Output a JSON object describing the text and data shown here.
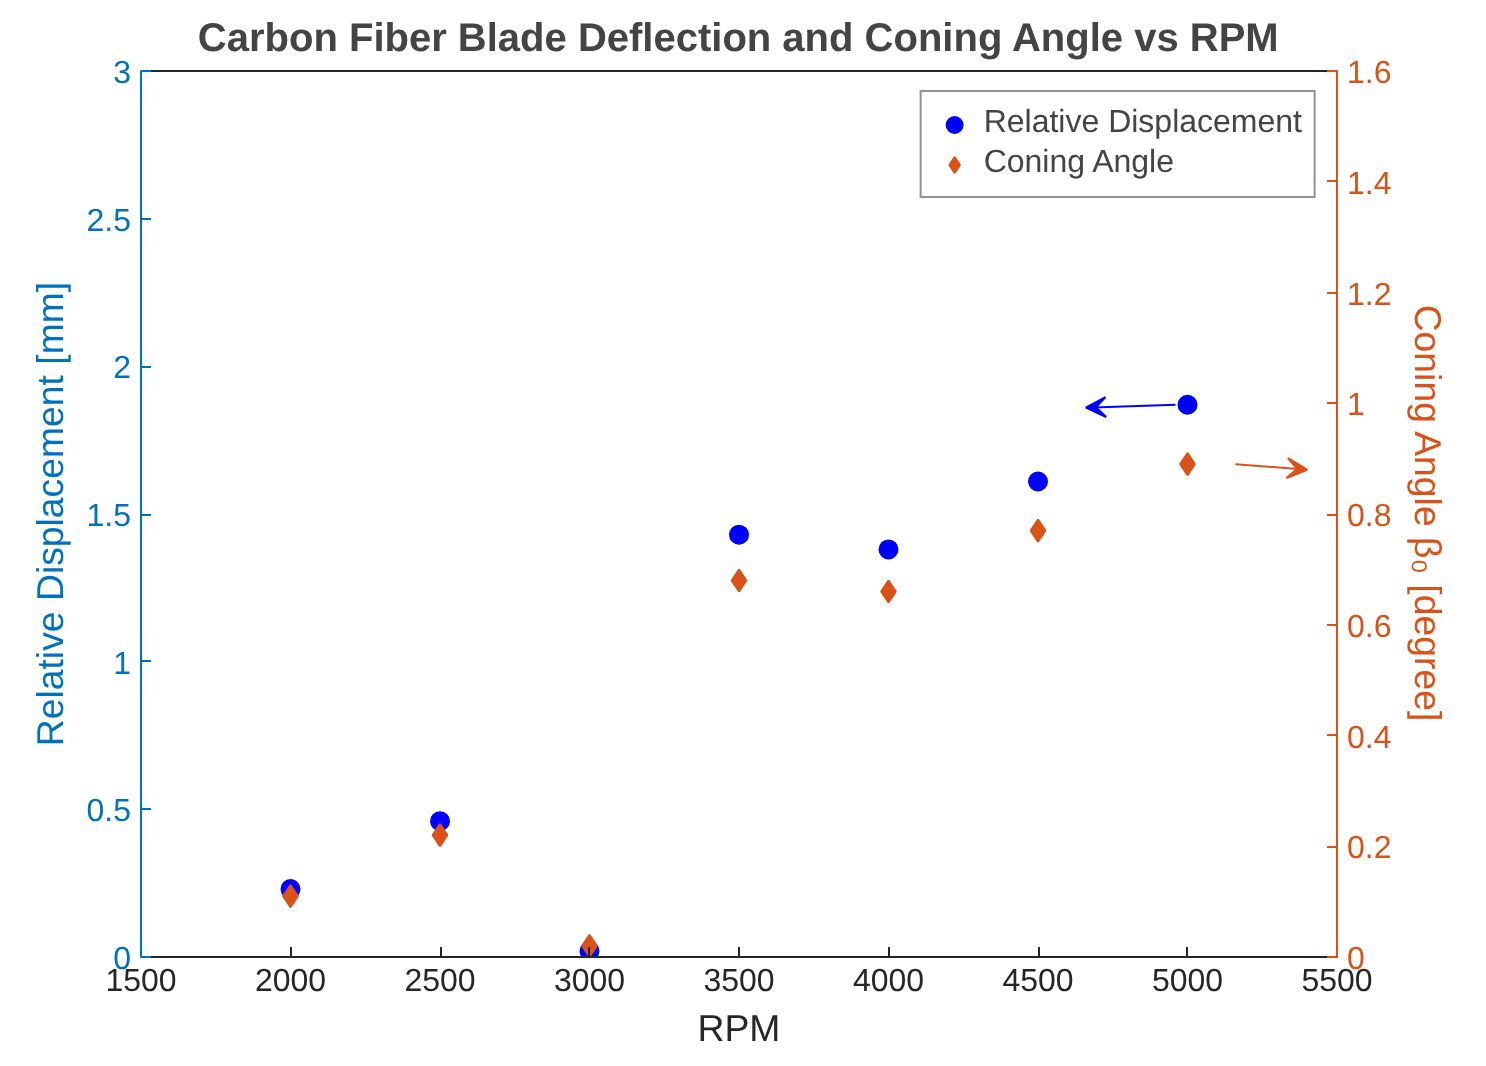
{
  "chart_data": {
    "type": "scatter",
    "title": "Carbon Fiber Blade Deflection and Coning Angle vs RPM",
    "xlabel": "RPM",
    "ylabel": "Relative Displacement [mm]",
    "y2label": "Coning Angle β₀ [degree]",
    "x": [
      2000,
      2500,
      3000,
      3500,
      4000,
      4500,
      5000
    ],
    "series": [
      {
        "name": "Relative Displacement",
        "color": "#0000ff",
        "marker": "circle",
        "values": [
          0.23,
          0.46,
          0.02,
          1.43,
          1.38,
          1.61,
          1.87
        ]
      },
      {
        "name": "Coning Angle",
        "color": "#d95319",
        "marker": "diamond",
        "axis": "y2",
        "values": [
          0.11,
          0.22,
          0.02,
          0.68,
          0.66,
          0.77,
          0.89
        ]
      }
    ],
    "xlim": [
      1500,
      5500
    ],
    "xticks": [
      1500,
      2000,
      2500,
      3000,
      3500,
      4000,
      4500,
      5000,
      5500
    ],
    "ylim": [
      0,
      3
    ],
    "yticks": [
      0,
      0.5,
      1,
      1.5,
      2,
      2.5,
      3
    ],
    "y2lim": [
      0,
      1.6
    ],
    "y2ticks": [
      0,
      0.2,
      0.4,
      0.6,
      0.8,
      1,
      1.2,
      1.4,
      1.6
    ],
    "grid": false,
    "legend": "top right"
  }
}
